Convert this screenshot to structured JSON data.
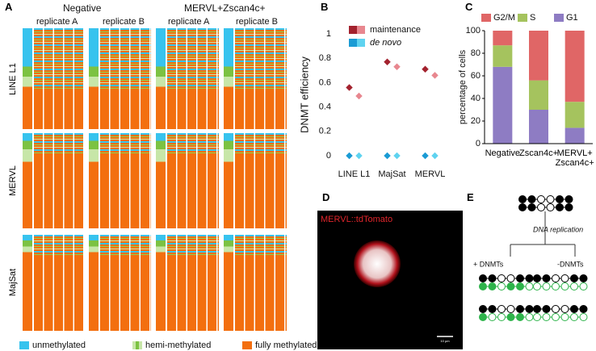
{
  "panel_labels": [
    "A",
    "B",
    "C",
    "D",
    "E"
  ],
  "panel_a": {
    "groups": [
      "Negative",
      "MERVL+Zscan4c+"
    ],
    "replicates": [
      "replicate A",
      "replicate B",
      "replicate A",
      "replicate B"
    ],
    "rows": [
      "LINE L1",
      "MERVL",
      "MajSat"
    ],
    "legend": [
      "unmethylated",
      "hemi-methylated",
      "fully methylated"
    ]
  },
  "chart_data": [
    {
      "type": "dot",
      "y_label": "DNMT efficiency",
      "categories": [
        "LINE L1",
        "MajSat",
        "MERVL"
      ],
      "ylim": [
        0,
        1
      ],
      "yticks": [
        0,
        0.2,
        0.4,
        0.6,
        0.8,
        1
      ],
      "series": [
        {
          "name": "maintenance",
          "colors": [
            "#a3222e",
            "#e8878f"
          ],
          "values": [
            [
              0.56,
              0.49
            ],
            [
              0.77,
              0.73
            ],
            [
              0.71,
              0.66
            ]
          ]
        },
        {
          "name": "de novo",
          "colors": [
            "#1a9bd4",
            "#5fd3f0"
          ],
          "values": [
            [
              0,
              0
            ],
            [
              0,
              0
            ],
            [
              0,
              0
            ]
          ]
        }
      ]
    },
    {
      "type": "bar",
      "stacked": true,
      "y_label": "percentage of cells",
      "categories": [
        "Negative",
        "Zscan4c+",
        "MERVL+\nZscan4c+"
      ],
      "ylim": [
        0,
        100
      ],
      "yticks": [
        0,
        20,
        40,
        60,
        80,
        100
      ],
      "series": [
        {
          "name": "G1",
          "color": "#8e7cc3",
          "values": [
            68,
            30,
            14
          ]
        },
        {
          "name": "S",
          "color": "#a5c35e",
          "values": [
            19,
            26,
            23
          ]
        },
        {
          "name": "G2/M",
          "color": "#e06666",
          "values": [
            13,
            44,
            63
          ]
        }
      ]
    }
  ],
  "panel_d": {
    "label": "MERVL::tdTomato",
    "scale": "10 µm"
  },
  "panel_e": {
    "step": "DNA replication",
    "plus": "+ DNMTs",
    "minus": "-DNMTs"
  }
}
